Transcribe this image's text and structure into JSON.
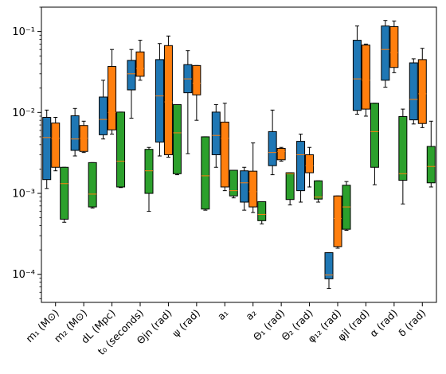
{
  "chart_data": {
    "type": "box",
    "yscale": "log",
    "ylim": [
      4.5e-05,
      0.2
    ],
    "yticks": [
      {
        "value": 0.0001,
        "label": "10⁻⁴"
      },
      {
        "value": 0.001,
        "label": "10⁻³"
      },
      {
        "value": 0.01,
        "label": "10⁻²"
      },
      {
        "value": 0.1,
        "label": "10⁻¹"
      }
    ],
    "categories": [
      "m₁ (M⊙)",
      "m₂ (M⊙)",
      "dL (Mpc)",
      "t₀ (seconds)",
      "Θjn (rad)",
      "ψ (rad)",
      "a₁",
      "a₂",
      "Θ₁ (rad)",
      "Θ₂ (rad)",
      "φ₁₂ (rad)",
      "φjl (rad)",
      "α (rad)",
      "δ (rad)"
    ],
    "series": [
      {
        "color": "#1f77b4",
        "boxes": [
          {
            "whislo": 0.00115,
            "q1": 0.00148,
            "med": 0.0049,
            "q3": 0.0087,
            "whishi": 0.0107
          },
          {
            "whislo": 0.0029,
            "q1": 0.0034,
            "med": 0.0047,
            "q3": 0.0091,
            "whishi": 0.0112
          },
          {
            "whislo": 0.0047,
            "q1": 0.0053,
            "med": 0.0082,
            "q3": 0.0155,
            "whishi": 0.025
          },
          {
            "whislo": 0.0085,
            "q1": 0.019,
            "med": 0.03,
            "q3": 0.044,
            "whishi": 0.06
          },
          {
            "whislo": 0.0029,
            "q1": 0.0043,
            "med": 0.016,
            "q3": 0.045,
            "whishi": 0.071
          },
          {
            "whislo": 0.0031,
            "q1": 0.0175,
            "med": 0.026,
            "q3": 0.039,
            "whishi": 0.058
          },
          {
            "whislo": 0.0021,
            "q1": 0.003,
            "med": 0.0052,
            "q3": 0.0101,
            "whishi": 0.0125
          },
          {
            "whislo": 0.00062,
            "q1": 0.00078,
            "med": 0.00135,
            "q3": 0.0019,
            "whishi": 0.0021
          },
          {
            "whislo": 0.0017,
            "q1": 0.0022,
            "med": 0.0032,
            "q3": 0.0058,
            "whishi": 0.0107
          },
          {
            "whislo": 0.00078,
            "q1": 0.00108,
            "med": 0.003,
            "q3": 0.0044,
            "whishi": 0.0054
          },
          {
            "whislo": 6.7e-05,
            "q1": 8.8e-05,
            "med": 9.8e-05,
            "q3": 0.000185,
            "whishi": 0.000185
          },
          {
            "whislo": 0.0095,
            "q1": 0.0106,
            "med": 0.026,
            "q3": 0.078,
            "whishi": 0.117
          },
          {
            "whislo": 0.0205,
            "q1": 0.025,
            "med": 0.06,
            "q3": 0.117,
            "whishi": 0.137
          },
          {
            "whislo": 0.0072,
            "q1": 0.0081,
            "med": 0.0145,
            "q3": 0.041,
            "whishi": 0.046
          }
        ]
      },
      {
        "color": "#ff7f0e",
        "boxes": [
          {
            "whislo": 0.0019,
            "q1": 0.0021,
            "med": 0.0048,
            "q3": 0.0074,
            "whishi": 0.0087
          },
          {
            "whislo": 0.0032,
            "q1": 0.0033,
            "med": 0.0048,
            "q3": 0.0069,
            "whishi": 0.0078
          },
          {
            "whislo": 0.0054,
            "q1": 0.0061,
            "med": 0.01,
            "q3": 0.037,
            "whishi": 0.06
          },
          {
            "whislo": 0.025,
            "q1": 0.028,
            "med": 0.035,
            "q3": 0.056,
            "whishi": 0.078
          },
          {
            "whislo": 0.0028,
            "q1": 0.003,
            "med": 0.0135,
            "q3": 0.067,
            "whishi": 0.088
          },
          {
            "whislo": 0.008,
            "q1": 0.0165,
            "med": 0.023,
            "q3": 0.038,
            "whishi": 0.038
          },
          {
            "whislo": 0.00108,
            "q1": 0.0012,
            "med": 0.0048,
            "q3": 0.0076,
            "whishi": 0.013
          },
          {
            "whislo": 0.00058,
            "q1": 0.00068,
            "med": 0.00105,
            "q3": 0.00188,
            "whishi": 0.0042
          },
          {
            "whislo": 0.0025,
            "q1": 0.0026,
            "med": 0.0033,
            "q3": 0.0036,
            "whishi": 0.0037
          },
          {
            "whislo": 0.0012,
            "q1": 0.0018,
            "med": 0.0022,
            "q3": 0.003,
            "whishi": 0.0037
          },
          {
            "whislo": 0.00021,
            "q1": 0.00022,
            "med": 0.00049,
            "q3": 0.00093,
            "whishi": 0.00093
          },
          {
            "whislo": 0.009,
            "q1": 0.011,
            "med": 0.025,
            "q3": 0.068,
            "whishi": 0.07
          },
          {
            "whislo": 0.031,
            "q1": 0.036,
            "med": 0.055,
            "q3": 0.115,
            "whishi": 0.135
          },
          {
            "whislo": 0.0065,
            "q1": 0.0073,
            "med": 0.017,
            "q3": 0.045,
            "whishi": 0.062
          }
        ]
      },
      {
        "color": "#2ca02c",
        "boxes": [
          {
            "whislo": 0.00044,
            "q1": 0.00048,
            "med": 0.00132,
            "q3": 0.0021,
            "whishi": 0.0021
          },
          {
            "whislo": 0.00066,
            "q1": 0.00068,
            "med": 0.00098,
            "q3": 0.0024,
            "whishi": 0.0024
          },
          {
            "whislo": 0.00118,
            "q1": 0.0012,
            "med": 0.0025,
            "q3": 0.0101,
            "whishi": 0.0101
          },
          {
            "whislo": 0.0006,
            "q1": 0.001,
            "med": 0.0019,
            "q3": 0.0035,
            "whishi": 0.0037
          },
          {
            "whislo": 0.0017,
            "q1": 0.00175,
            "med": 0.0056,
            "q3": 0.0125,
            "whishi": 0.0125
          },
          {
            "whislo": 0.00062,
            "q1": 0.00064,
            "med": 0.00165,
            "q3": 0.005,
            "whishi": 0.005
          },
          {
            "whislo": 0.00088,
            "q1": 0.00093,
            "med": 0.00108,
            "q3": 0.00193,
            "whishi": 0.00193
          },
          {
            "whislo": 0.00042,
            "q1": 0.00046,
            "med": 0.00055,
            "q3": 0.00079,
            "whishi": 0.00079
          },
          {
            "whislo": 0.00072,
            "q1": 0.00084,
            "med": 0.00175,
            "q3": 0.0018,
            "whishi": 0.0018
          },
          {
            "whislo": 0.00078,
            "q1": 0.00085,
            "med": 0.0009,
            "q3": 0.00143,
            "whishi": 0.00143
          },
          {
            "whislo": 0.00035,
            "q1": 0.00036,
            "med": 0.00068,
            "q3": 0.00126,
            "whishi": 0.0014
          },
          {
            "whislo": 0.00128,
            "q1": 0.0021,
            "med": 0.0058,
            "q3": 0.013,
            "whishi": 0.013
          },
          {
            "whislo": 0.00074,
            "q1": 0.00145,
            "med": 0.00175,
            "q3": 0.0089,
            "whishi": 0.011
          },
          {
            "whislo": 0.0012,
            "q1": 0.00135,
            "med": 0.00215,
            "q3": 0.0038,
            "whishi": 0.0078
          }
        ]
      }
    ],
    "median_color": "#ff7f0e"
  }
}
